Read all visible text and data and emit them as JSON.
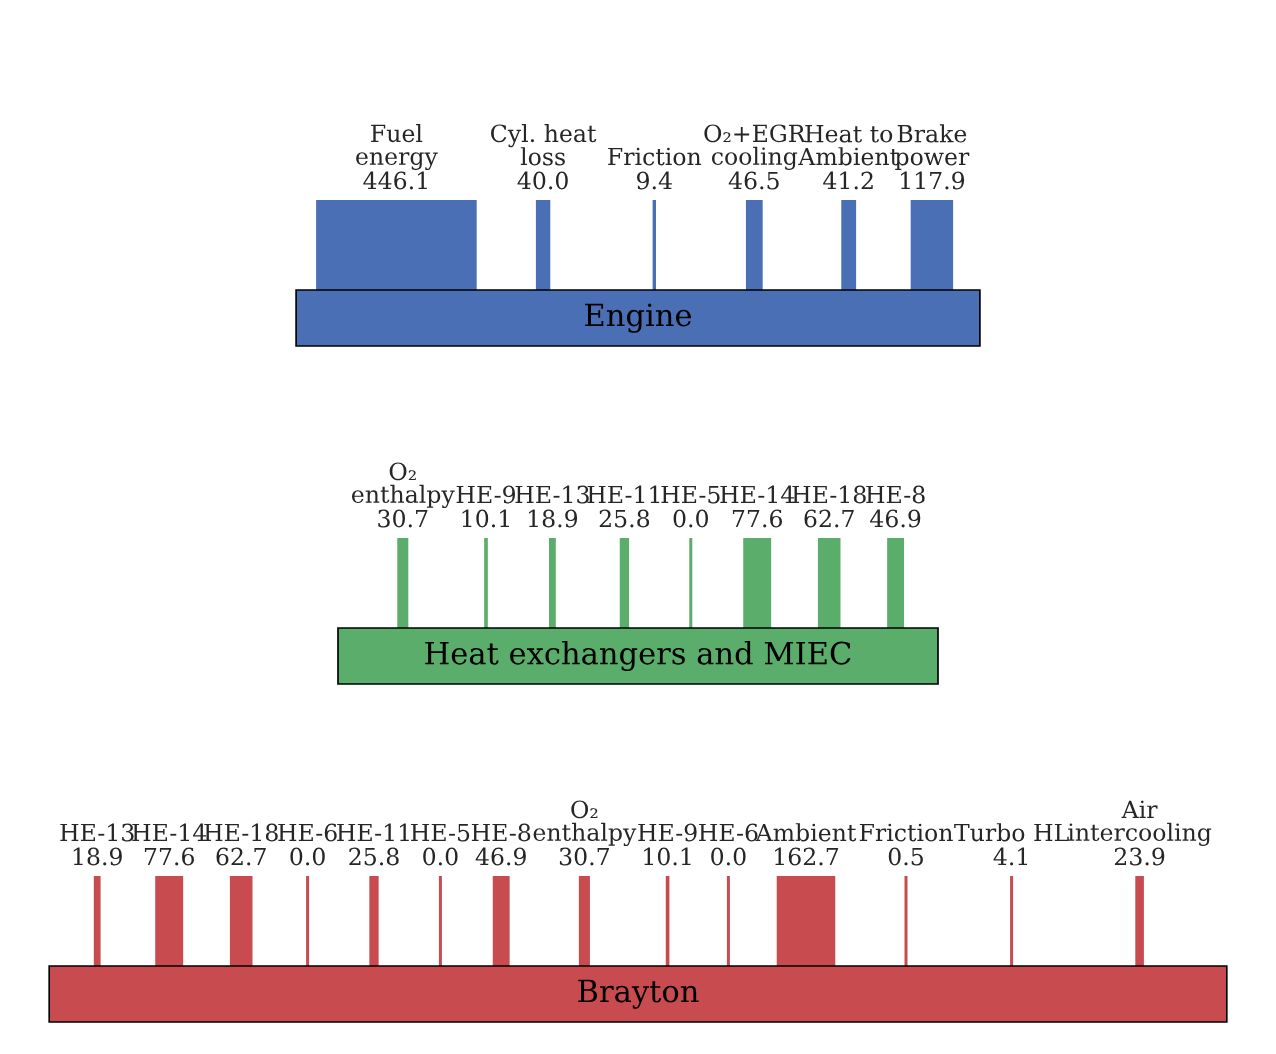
{
  "chart_data": {
    "type": "other",
    "categories": [
      "Fuel energy",
      "Cyl. heat loss",
      "Friction",
      "O₂+EGR cooling",
      "Heat to Ambient",
      "Brake power",
      "O₂ enthalpy",
      "HE-9",
      "HE-13",
      "HE-11",
      "HE-5",
      "HE-14",
      "HE-18",
      "HE-8",
      "HE-13",
      "HE-14",
      "HE-18",
      "HE-6",
      "HE-11",
      "HE-5",
      "HE-8",
      "O₂ enthalpy",
      "HE-9",
      "HE-6",
      "Ambient",
      "Friction",
      "Turbo HL",
      "Air intercooling"
    ],
    "series": [
      {
        "name": "Engine",
        "colors": [
          "#4a6fb5",
          "#4a6fb5",
          "#4a6fb5",
          "#4a6fb5",
          "#4a6fb5",
          "#4a6fb5",
          null,
          null,
          null,
          null,
          null,
          null,
          null,
          null,
          null,
          null,
          null,
          null,
          null,
          null,
          null,
          null,
          null,
          null,
          null,
          null,
          null,
          null
        ],
        "values": [
          446.1,
          40.0,
          9.4,
          46.5,
          41.2,
          117.9,
          null,
          null,
          null,
          null,
          null,
          null,
          null,
          null,
          null,
          null,
          null,
          null,
          null,
          null,
          null,
          null,
          null,
          null,
          null,
          null,
          null,
          null
        ],
        "value_labels": [
          "446.1",
          "40.0",
          "9.4",
          "46.5",
          "41.2",
          "117.9",
          null,
          null,
          null,
          null,
          null,
          null,
          null,
          null,
          null,
          null,
          null,
          null,
          null,
          null,
          null,
          null,
          null,
          null,
          null,
          null,
          null,
          null
        ]
      },
      {
        "name": "Heat exchangers and MIEC",
        "colors": [
          null,
          null,
          null,
          null,
          null,
          null,
          "#5aad6a",
          "#5aad6a",
          "#5aad6a",
          "#5aad6a",
          "#5aad6a",
          "#5aad6a",
          "#5aad6a",
          "#5aad6a",
          null,
          null,
          null,
          null,
          null,
          null,
          null,
          null,
          null,
          null,
          null,
          null,
          null,
          null
        ],
        "values": [
          null,
          null,
          null,
          null,
          null,
          null,
          30.7,
          10.1,
          18.9,
          25.8,
          0.0,
          77.6,
          62.7,
          46.9,
          null,
          null,
          null,
          null,
          null,
          null,
          null,
          null,
          null,
          null,
          null,
          null,
          null,
          null
        ],
        "value_labels": [
          null,
          null,
          null,
          null,
          null,
          null,
          "30.7",
          "10.1",
          "18.9",
          "25.8",
          "0.0",
          "77.6",
          "62.7",
          "46.9",
          null,
          null,
          null,
          null,
          null,
          null,
          null,
          null,
          null,
          null,
          null,
          null,
          null,
          null
        ]
      },
      {
        "name": "Brayton",
        "colors": [
          null,
          null,
          null,
          null,
          null,
          null,
          null,
          null,
          null,
          null,
          null,
          null,
          null,
          null,
          "#c84b50",
          "#c84b50",
          "#c84b50",
          "#c84b50",
          "#c84b50",
          "#c84b50",
          "#c84b50",
          "#c84b50",
          "#c84b50",
          "#c84b50",
          "#c84b50",
          "#c84b50",
          "#c84b50",
          "#c84b50"
        ],
        "values": [
          null,
          null,
          null,
          null,
          null,
          null,
          null,
          null,
          null,
          null,
          null,
          null,
          null,
          null,
          18.9,
          77.6,
          62.7,
          0.0,
          25.8,
          0.0,
          46.9,
          30.7,
          10.1,
          0.0,
          162.7,
          0.5,
          4.1,
          23.9
        ],
        "value_labels": [
          null,
          null,
          null,
          null,
          null,
          null,
          null,
          null,
          null,
          null,
          null,
          null,
          null,
          null,
          "18.9",
          "77.6",
          "62.7",
          "0.0",
          "25.8",
          "0.0",
          "46.9",
          "30.7",
          "10.1",
          "0.0",
          "162.7",
          "0.5",
          "4.1",
          "23.9"
        ]
      }
    ]
  }
}
